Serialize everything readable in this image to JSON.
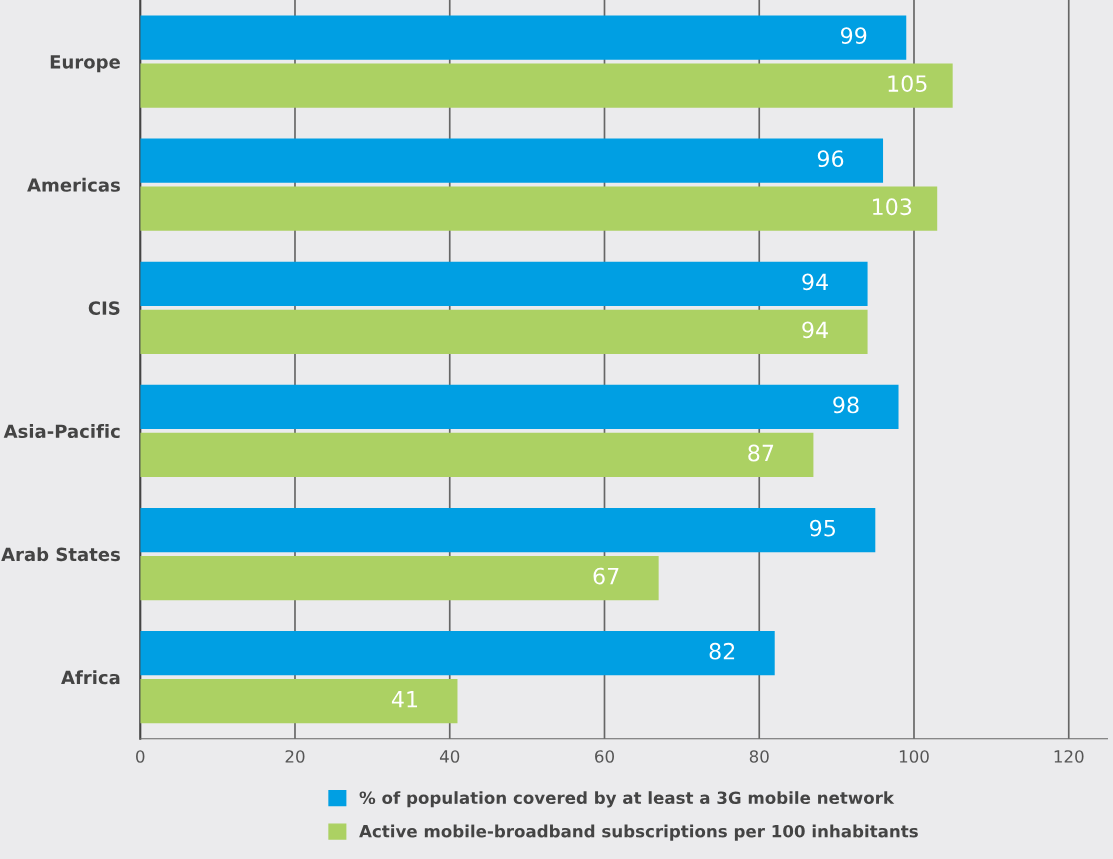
{
  "chart_data": {
    "type": "bar",
    "orientation": "horizontal",
    "categories": [
      "Europe",
      "Americas",
      "CIS",
      "Asia-Pacific",
      "Arab States",
      "Africa"
    ],
    "series": [
      {
        "name": "% of population covered by at least a 3G mobile network",
        "color": "#009fe3",
        "values": [
          99,
          96,
          94,
          98,
          95,
          82
        ]
      },
      {
        "name": "Active mobile-broadband subscriptions per 100 inhabitants",
        "color": "#acd163",
        "values": [
          105,
          103,
          94,
          87,
          67,
          41
        ]
      }
    ],
    "xlim": [
      0,
      125
    ],
    "xticks": [
      0,
      20,
      40,
      60,
      80,
      100,
      120
    ],
    "grid": "x",
    "data_labels": true,
    "legend": "bottom"
  }
}
